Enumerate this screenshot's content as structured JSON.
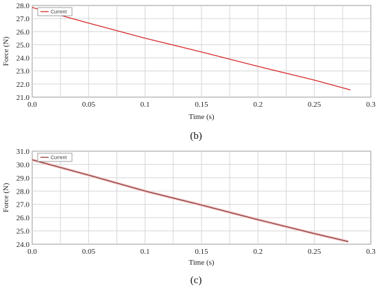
{
  "colors": {
    "series_b": "#d62b2b",
    "series_c": "#8b3a3a",
    "grid": "#d6d6d6",
    "frame": "#9a9a9a",
    "halo_c": "#f4c9c9"
  },
  "chart_data": [
    {
      "type": "line",
      "caption": "(b)",
      "xlabel": "Time (s)",
      "ylabel": "Force (N)",
      "xlim": [
        0.0,
        0.3
      ],
      "ylim": [
        21.0,
        28.0
      ],
      "xticks": [
        "0.0",
        "0.05",
        "0.1",
        "0.15",
        "0.2",
        "0.25",
        "0.3"
      ],
      "yticks": [
        "21.0",
        "22.0",
        "23.0",
        "24.0",
        "25.0",
        "26.0",
        "27.0",
        "28.0"
      ],
      "grid": true,
      "legend_position": "top-left",
      "series": [
        {
          "name": "Current",
          "x": [
            0.0,
            0.05,
            0.1,
            0.15,
            0.2,
            0.25,
            0.282
          ],
          "y": [
            27.85,
            26.65,
            25.5,
            24.45,
            23.35,
            22.3,
            21.55
          ]
        }
      ]
    },
    {
      "type": "line",
      "caption": "(c)",
      "xlabel": "Time (s)",
      "ylabel": "Force (N)",
      "xlim": [
        0.0,
        0.3
      ],
      "ylim": [
        24.0,
        31.0
      ],
      "xticks": [
        "0.0",
        "0.05",
        "0.1",
        "0.15",
        "0.2",
        "0.25",
        "0.3"
      ],
      "yticks": [
        "24.0",
        "25.0",
        "26.0",
        "27.0",
        "28.0",
        "29.0",
        "30.0",
        "31.0"
      ],
      "grid": true,
      "legend_position": "top-left",
      "series": [
        {
          "name": "Current",
          "x": [
            0.0,
            0.05,
            0.1,
            0.15,
            0.2,
            0.25,
            0.28
          ],
          "y": [
            30.35,
            29.2,
            28.0,
            26.95,
            25.85,
            24.8,
            24.2
          ]
        }
      ]
    }
  ]
}
